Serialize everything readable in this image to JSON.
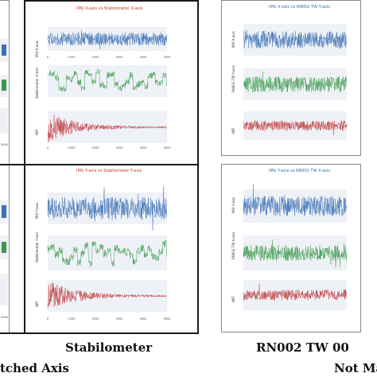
{
  "panels": {
    "stab_x": {
      "title": "IMU X-axis vs Stabilometer X-axis",
      "ylabels": [
        "IMU X-axis",
        "Stabilometer X-axis",
        "NPF"
      ],
      "xticks": [
        "0",
        "1000",
        "2000",
        "3000",
        "4000",
        "5000"
      ]
    },
    "stab_y": {
      "title": "IMU Y-axis vs Stabilometer Y-axis",
      "ylabels": [
        "IMU Y-axis",
        "Stabilometer Y-axis",
        "NPF"
      ],
      "xticks": [
        "0",
        "1000",
        "2000",
        "3000",
        "4000",
        "5000"
      ]
    },
    "rn_x": {
      "title": "IMU X-axis vs RN002 TW Y-axis",
      "ylabels": [
        "IMU X-axis",
        "RN002 TW Y-axis",
        "NPF"
      ]
    },
    "rn_y": {
      "title": "IMU Y-axis vs RN002 TW X-axis",
      "ylabels": [
        "IMU Y-axis",
        "RN002 TW X-axis",
        "NPF"
      ]
    }
  },
  "captions": {
    "stabilometer": "Stabilometer",
    "rn002": "RN002 TW 00",
    "left_partial": "tched Axis",
    "right_partial": "Not Ma"
  },
  "colors": {
    "imu": "#3b6fb6",
    "stab": "#3a9a4a",
    "npf": "#c0393b",
    "title_red": "#c0392b",
    "title_blue": "#2f6eb0"
  }
}
